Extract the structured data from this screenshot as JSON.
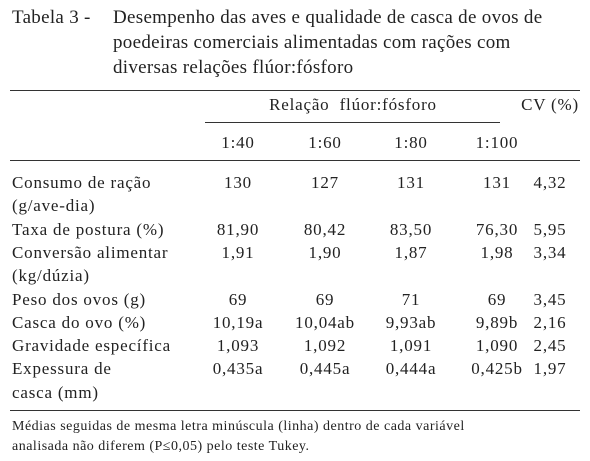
{
  "title": {
    "label": "Tabela 3 -",
    "lines": [
      "Desempenho das aves e qualidade de casca de ovos de",
      "poedeiras comerciais alimentadas com rações com",
      "diversas relações flúor:fósforo"
    ]
  },
  "table": {
    "group_header": "Relação  flúor:fósforo",
    "cv_header": "CV (%)",
    "columns": [
      "1:40",
      "1:60",
      "1:80",
      "1:100"
    ],
    "rows": [
      {
        "label": [
          "Consumo de ração",
          "(g/ave-dia)"
        ],
        "values": [
          "130",
          "127",
          "131",
          "131"
        ],
        "cv": "4,32"
      },
      {
        "label": [
          "Taxa de postura (%)"
        ],
        "values": [
          "81,90",
          "80,42",
          "83,50",
          "76,30"
        ],
        "cv": "5,95"
      },
      {
        "label": [
          "Conversão alimentar",
          "(kg/dúzia)"
        ],
        "values": [
          "1,91",
          "1,90",
          "1,87",
          "1,98"
        ],
        "cv": "3,34"
      },
      {
        "label": [
          "Peso dos ovos (g)"
        ],
        "values": [
          "69",
          "69",
          "71",
          "69"
        ],
        "cv": "3,45"
      },
      {
        "label": [
          "Casca do ovo (%)"
        ],
        "values": [
          "10,19a",
          "10,04ab",
          "9,93ab",
          "9,89b"
        ],
        "cv": "2,16"
      },
      {
        "label": [
          "Gravidade específica"
        ],
        "values": [
          "1,093",
          "1,092",
          "1,091",
          "1,090"
        ],
        "cv": "2,45"
      },
      {
        "label": [
          "Expessura de",
          "casca (mm)"
        ],
        "values": [
          "0,435a",
          "0,445a",
          "0,444a",
          "0,425b"
        ],
        "cv": "1,97"
      }
    ]
  },
  "footnote": [
    "Médias seguidas de mesma letra minúscula (linha) dentro de cada variável",
    "analisada não diferem (P≤0,05) pelo teste Tukey."
  ]
}
